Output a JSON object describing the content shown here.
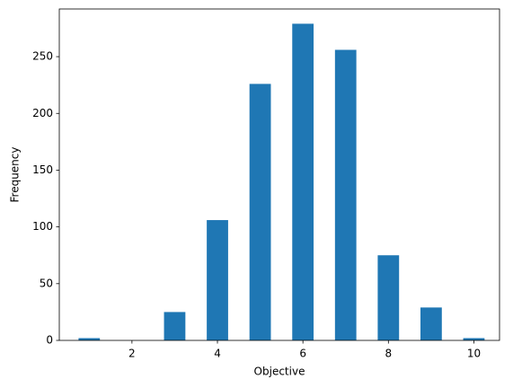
{
  "chart_data": {
    "type": "histogram",
    "x_label": "Objective",
    "y_label": "Frequency",
    "bins": [
      0.75,
      1.25,
      1.75,
      2.25,
      2.75,
      3.25,
      3.75,
      4.25,
      4.75,
      5.25,
      5.75,
      6.25,
      6.75,
      7.25,
      7.75,
      8.25,
      8.75,
      9.25,
      9.75,
      10.25
    ],
    "counts": [
      2,
      0,
      0,
      0,
      25,
      0,
      106,
      0,
      226,
      0,
      279,
      0,
      256,
      0,
      75,
      0,
      29,
      0,
      2
    ],
    "color": "#1f77b4",
    "xlim": [
      0.3,
      10.6
    ],
    "xticks": [
      2,
      4,
      6,
      8,
      10
    ],
    "ylim": [
      0,
      292
    ],
    "yticks": [
      0,
      50,
      100,
      150,
      200,
      250
    ]
  }
}
